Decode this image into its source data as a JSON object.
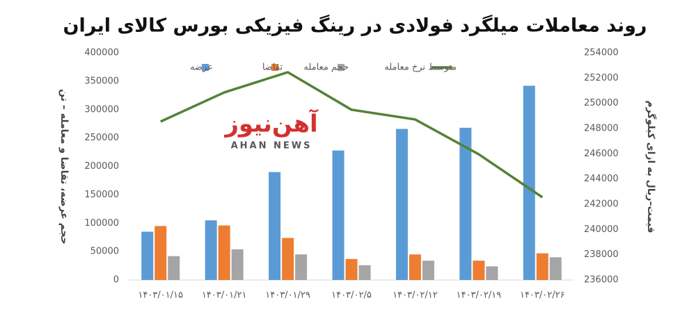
{
  "chart_data": {
    "type": "bar_line",
    "title": "روند معاملات میلگرد فولادی در رینگ فیزیکی بورس کالای ایران",
    "watermark": {
      "title": "آهن‌نیوز",
      "subtitle": "AHAN NEWS"
    },
    "ylabel": "حجم عرضه، تقاضا و معامله – تن",
    "y2label": "قیمت–ریال به ازای کیلوگرم",
    "categories": [
      "۱۴۰۳/۰۱/۱۵",
      "۱۴۰۳/۰۱/۲۱",
      "۱۴۰۳/۰۱/۲۹",
      "۱۴۰۳/۰۲/۵",
      "۱۴۰۳/۰۲/۱۲",
      "۱۴۰۳/۰۲/۱۹",
      "۱۴۰۳/۰۲/۲۶"
    ],
    "series": [
      {
        "name": "عرضه",
        "color": "#5b9bd5",
        "type": "bar",
        "values": [
          85000,
          105000,
          190000,
          228000,
          266000,
          268000,
          342000
        ]
      },
      {
        "name": "تقاضا",
        "color": "#ed7d31",
        "type": "bar",
        "values": [
          95000,
          96000,
          74000,
          37000,
          45000,
          34000,
          47000
        ]
      },
      {
        "name": "حجم معامله",
        "color": "#a5a5a5",
        "type": "bar",
        "values": [
          42000,
          54000,
          45000,
          26000,
          34000,
          24000,
          40000
        ]
      },
      {
        "name": "متوسط نرخ معامله",
        "color": "#548235",
        "type": "line",
        "axis": "y2",
        "values": [
          248550,
          250860,
          252460,
          249490,
          248720,
          245960,
          242550
        ]
      }
    ],
    "ylim": [
      0,
      400000
    ],
    "yticks": [
      0,
      50000,
      100000,
      150000,
      200000,
      250000,
      300000,
      350000,
      400000
    ],
    "y2lim": [
      236000,
      254000
    ],
    "y2ticks": [
      236000,
      238000,
      240000,
      242000,
      244000,
      246000,
      248000,
      250000,
      252000,
      254000
    ],
    "grid": false,
    "legend": "top"
  }
}
